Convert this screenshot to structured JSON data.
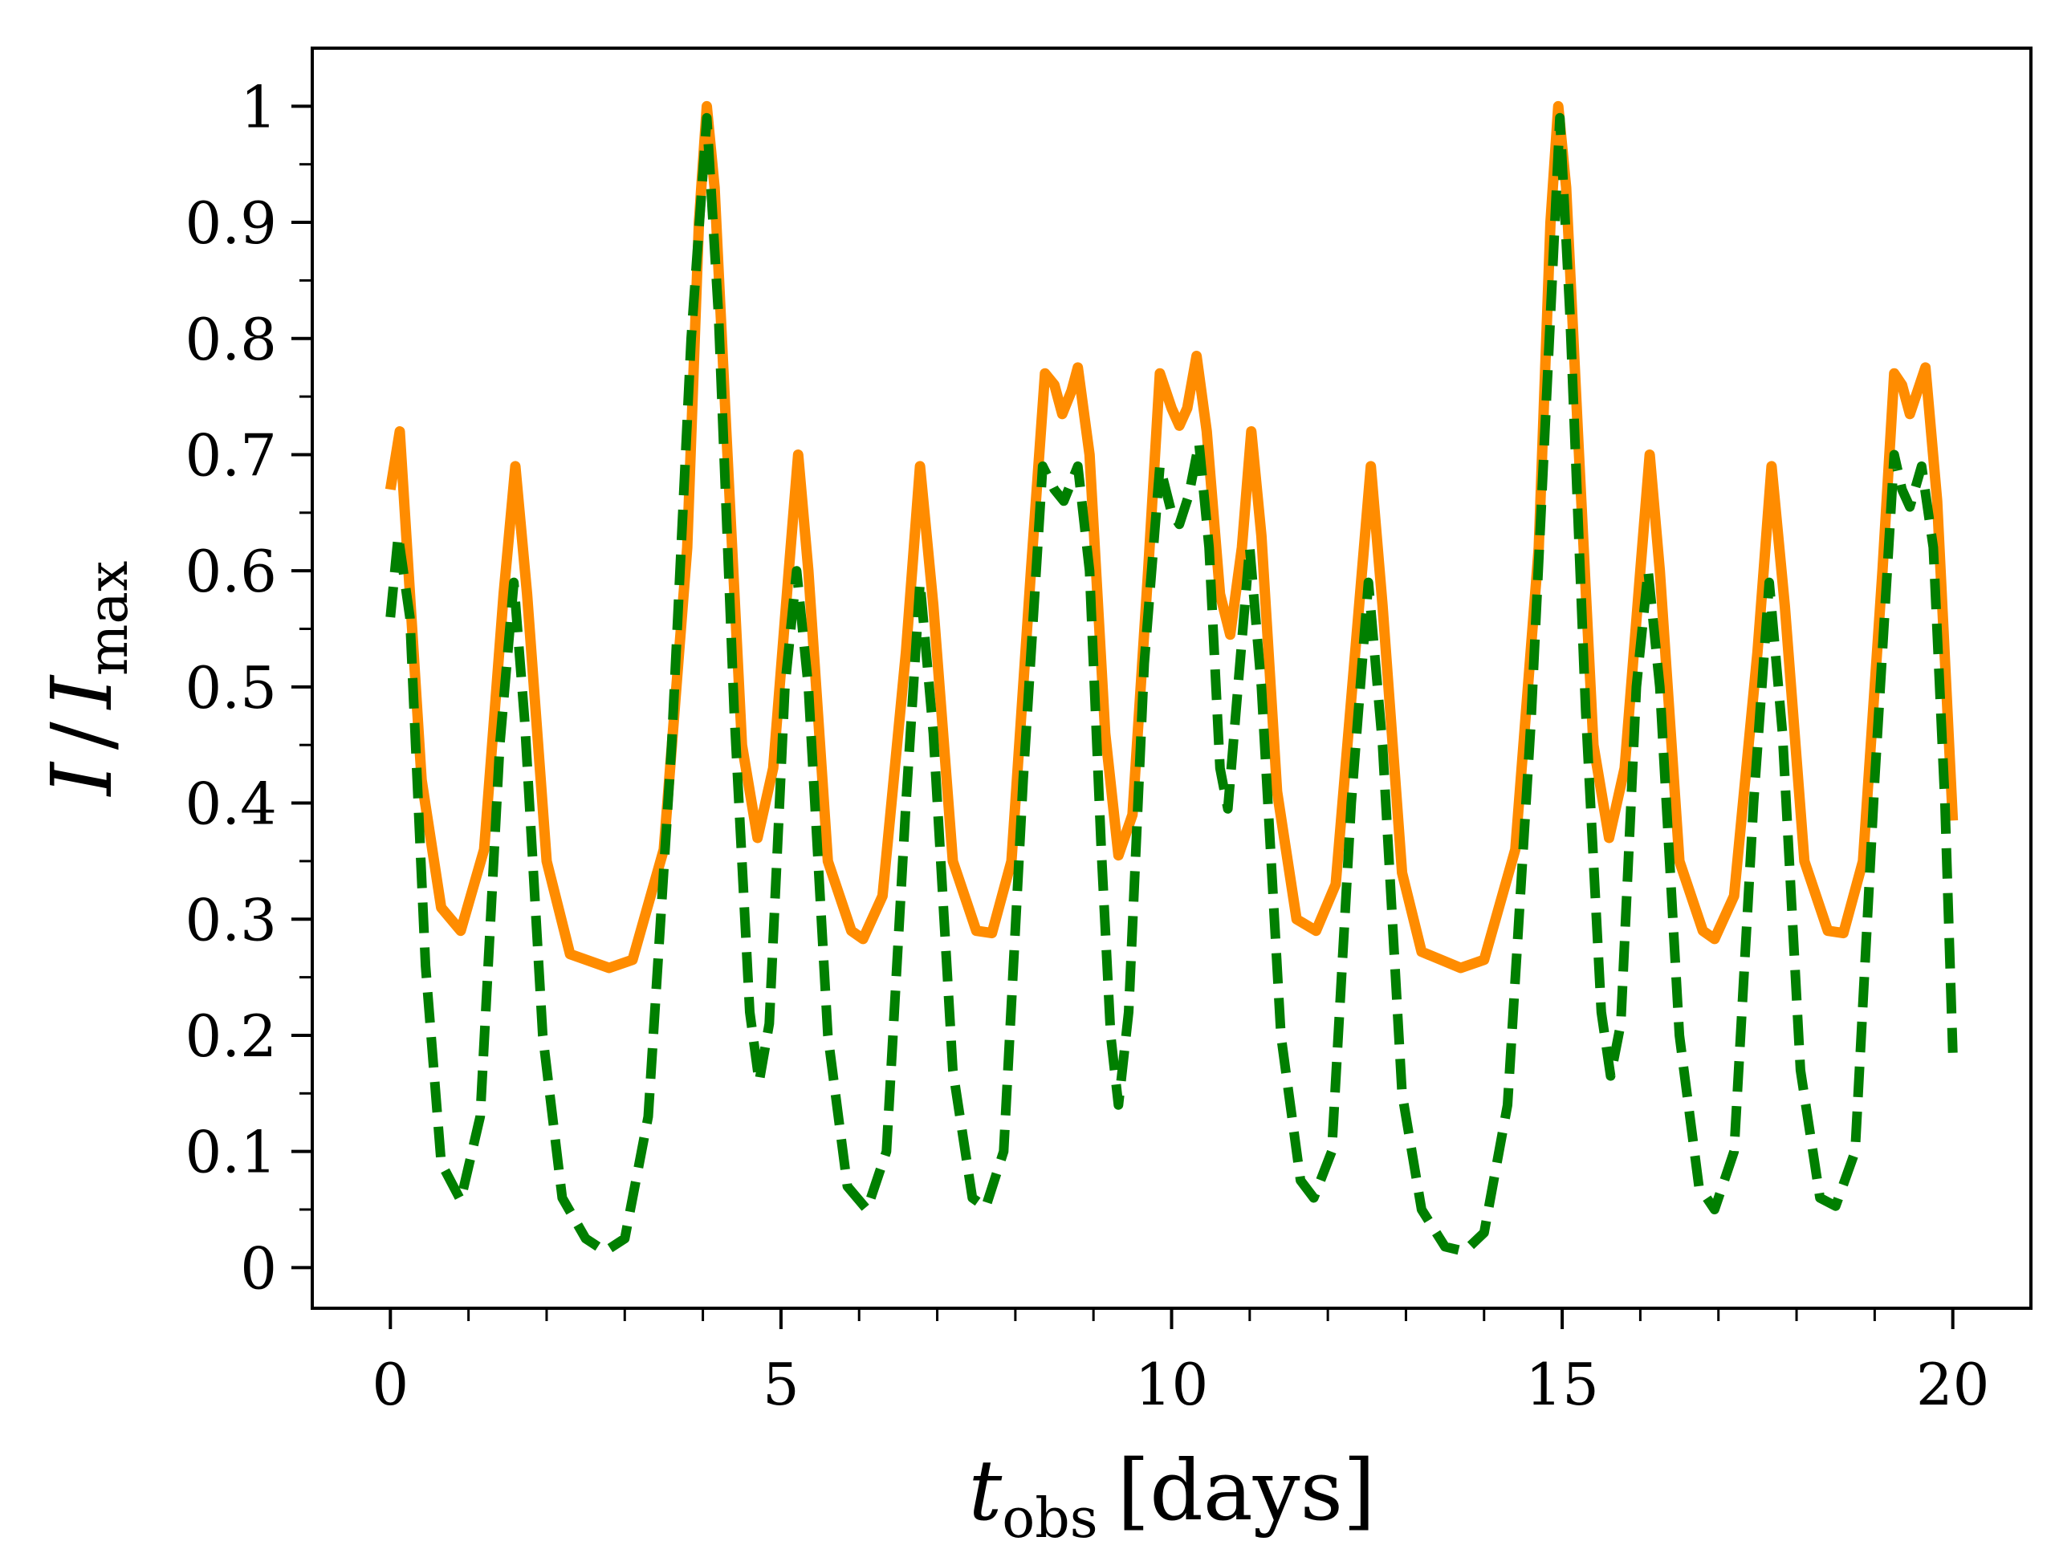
{
  "chart_data": {
    "type": "line",
    "title": "",
    "xlabel": "t_obs [days]",
    "xlabel_main": "t",
    "xlabel_sub": "obs",
    "xlabel_unit": "[days]",
    "ylabel": "I / I_max",
    "ylabel_num": "I",
    "ylabel_slash": "/",
    "ylabel_den": "I",
    "ylabel_sub": "max",
    "xlim": [
      -1,
      21
    ],
    "ylim": [
      -0.035,
      1.05
    ],
    "xticks": [
      0,
      5,
      10,
      15,
      20
    ],
    "xtick_labels": [
      "0",
      "5",
      "10",
      "15",
      "20"
    ],
    "yticks": [
      0,
      0.1,
      0.2,
      0.3,
      0.4,
      0.5,
      0.6,
      0.7,
      0.8,
      0.9,
      1.0
    ],
    "ytick_labels": [
      "0",
      "0.1",
      "0.2",
      "0.3",
      "0.4",
      "0.5",
      "0.6",
      "0.7",
      "0.8",
      "0.9",
      "1"
    ],
    "grid": false,
    "series": [
      {
        "name": "orange solid",
        "color": "#ff8c00",
        "style": "solid",
        "points": [
          [
            0.0,
            0.67
          ],
          [
            0.12,
            0.72
          ],
          [
            0.4,
            0.42
          ],
          [
            0.65,
            0.31
          ],
          [
            0.9,
            0.29
          ],
          [
            1.2,
            0.36
          ],
          [
            1.45,
            0.58
          ],
          [
            1.6,
            0.69
          ],
          [
            1.75,
            0.58
          ],
          [
            2.0,
            0.35
          ],
          [
            2.3,
            0.27
          ],
          [
            2.8,
            0.258
          ],
          [
            3.1,
            0.265
          ],
          [
            3.5,
            0.36
          ],
          [
            3.8,
            0.62
          ],
          [
            3.95,
            0.9
          ],
          [
            4.05,
            1.0
          ],
          [
            4.15,
            0.93
          ],
          [
            4.3,
            0.72
          ],
          [
            4.5,
            0.45
          ],
          [
            4.7,
            0.37
          ],
          [
            4.9,
            0.43
          ],
          [
            5.1,
            0.6
          ],
          [
            5.22,
            0.7
          ],
          [
            5.35,
            0.6
          ],
          [
            5.6,
            0.35
          ],
          [
            5.9,
            0.29
          ],
          [
            6.05,
            0.283
          ],
          [
            6.3,
            0.32
          ],
          [
            6.6,
            0.53
          ],
          [
            6.78,
            0.69
          ],
          [
            6.95,
            0.57
          ],
          [
            7.2,
            0.35
          ],
          [
            7.5,
            0.29
          ],
          [
            7.7,
            0.288
          ],
          [
            7.95,
            0.35
          ],
          [
            8.2,
            0.6
          ],
          [
            8.38,
            0.77
          ],
          [
            8.5,
            0.76
          ],
          [
            8.6,
            0.735
          ],
          [
            8.72,
            0.755
          ],
          [
            8.8,
            0.775
          ],
          [
            8.95,
            0.7
          ],
          [
            9.15,
            0.46
          ],
          [
            9.32,
            0.355
          ],
          [
            9.5,
            0.39
          ],
          [
            9.7,
            0.6
          ],
          [
            9.85,
            0.77
          ],
          [
            10.0,
            0.74
          ],
          [
            10.1,
            0.725
          ],
          [
            10.2,
            0.74
          ],
          [
            10.32,
            0.785
          ],
          [
            10.45,
            0.72
          ],
          [
            10.62,
            0.58
          ],
          [
            10.75,
            0.545
          ],
          [
            10.9,
            0.62
          ],
          [
            11.02,
            0.72
          ],
          [
            11.15,
            0.63
          ],
          [
            11.35,
            0.41
          ],
          [
            11.6,
            0.3
          ],
          [
            11.85,
            0.29
          ],
          [
            12.1,
            0.33
          ],
          [
            12.4,
            0.57
          ],
          [
            12.55,
            0.69
          ],
          [
            12.7,
            0.57
          ],
          [
            12.95,
            0.34
          ],
          [
            13.2,
            0.272
          ],
          [
            13.7,
            0.258
          ],
          [
            14.0,
            0.265
          ],
          [
            14.4,
            0.36
          ],
          [
            14.7,
            0.62
          ],
          [
            14.85,
            0.9
          ],
          [
            14.95,
            1.0
          ],
          [
            15.05,
            0.93
          ],
          [
            15.2,
            0.72
          ],
          [
            15.4,
            0.45
          ],
          [
            15.6,
            0.37
          ],
          [
            15.8,
            0.43
          ],
          [
            16.0,
            0.6
          ],
          [
            16.12,
            0.7
          ],
          [
            16.25,
            0.6
          ],
          [
            16.5,
            0.35
          ],
          [
            16.8,
            0.29
          ],
          [
            16.95,
            0.283
          ],
          [
            17.2,
            0.32
          ],
          [
            17.5,
            0.53
          ],
          [
            17.68,
            0.69
          ],
          [
            17.85,
            0.57
          ],
          [
            18.1,
            0.35
          ],
          [
            18.4,
            0.29
          ],
          [
            18.6,
            0.288
          ],
          [
            18.85,
            0.35
          ],
          [
            19.1,
            0.6
          ],
          [
            19.25,
            0.77
          ],
          [
            19.35,
            0.76
          ],
          [
            19.45,
            0.735
          ],
          [
            19.55,
            0.755
          ],
          [
            19.65,
            0.775
          ],
          [
            19.8,
            0.66
          ],
          [
            20.0,
            0.385
          ]
        ]
      },
      {
        "name": "green dashed",
        "color": "#007f00",
        "style": "dashed",
        "points": [
          [
            0.0,
            0.56
          ],
          [
            0.1,
            0.63
          ],
          [
            0.25,
            0.56
          ],
          [
            0.45,
            0.26
          ],
          [
            0.65,
            0.09
          ],
          [
            0.9,
            0.058
          ],
          [
            1.15,
            0.13
          ],
          [
            1.4,
            0.45
          ],
          [
            1.58,
            0.59
          ],
          [
            1.72,
            0.47
          ],
          [
            1.95,
            0.2
          ],
          [
            2.2,
            0.06
          ],
          [
            2.5,
            0.025
          ],
          [
            2.75,
            0.014
          ],
          [
            3.0,
            0.025
          ],
          [
            3.3,
            0.13
          ],
          [
            3.6,
            0.45
          ],
          [
            3.85,
            0.8
          ],
          [
            4.05,
            0.99
          ],
          [
            4.2,
            0.82
          ],
          [
            4.4,
            0.48
          ],
          [
            4.6,
            0.22
          ],
          [
            4.72,
            0.16
          ],
          [
            4.85,
            0.21
          ],
          [
            5.05,
            0.5
          ],
          [
            5.2,
            0.6
          ],
          [
            5.35,
            0.5
          ],
          [
            5.6,
            0.2
          ],
          [
            5.85,
            0.07
          ],
          [
            6.1,
            0.05
          ],
          [
            6.35,
            0.1
          ],
          [
            6.6,
            0.4
          ],
          [
            6.78,
            0.59
          ],
          [
            6.95,
            0.46
          ],
          [
            7.2,
            0.17
          ],
          [
            7.45,
            0.06
          ],
          [
            7.62,
            0.052
          ],
          [
            7.85,
            0.1
          ],
          [
            8.1,
            0.42
          ],
          [
            8.35,
            0.69
          ],
          [
            8.5,
            0.67
          ],
          [
            8.62,
            0.66
          ],
          [
            8.8,
            0.69
          ],
          [
            8.95,
            0.6
          ],
          [
            9.1,
            0.36
          ],
          [
            9.22,
            0.2
          ],
          [
            9.32,
            0.14
          ],
          [
            9.45,
            0.22
          ],
          [
            9.65,
            0.52
          ],
          [
            9.85,
            0.69
          ],
          [
            10.0,
            0.65
          ],
          [
            10.1,
            0.64
          ],
          [
            10.22,
            0.665
          ],
          [
            10.35,
            0.71
          ],
          [
            10.48,
            0.62
          ],
          [
            10.62,
            0.43
          ],
          [
            10.72,
            0.395
          ],
          [
            10.85,
            0.5
          ],
          [
            11.0,
            0.62
          ],
          [
            11.15,
            0.5
          ],
          [
            11.4,
            0.2
          ],
          [
            11.65,
            0.075
          ],
          [
            11.82,
            0.06
          ],
          [
            12.05,
            0.1
          ],
          [
            12.3,
            0.4
          ],
          [
            12.52,
            0.59
          ],
          [
            12.7,
            0.45
          ],
          [
            12.95,
            0.15
          ],
          [
            13.2,
            0.05
          ],
          [
            13.5,
            0.018
          ],
          [
            13.75,
            0.014
          ],
          [
            14.0,
            0.03
          ],
          [
            14.3,
            0.14
          ],
          [
            14.6,
            0.47
          ],
          [
            14.85,
            0.82
          ],
          [
            14.97,
            0.99
          ],
          [
            15.1,
            0.82
          ],
          [
            15.3,
            0.48
          ],
          [
            15.5,
            0.22
          ],
          [
            15.62,
            0.165
          ],
          [
            15.75,
            0.21
          ],
          [
            15.95,
            0.5
          ],
          [
            16.1,
            0.6
          ],
          [
            16.25,
            0.5
          ],
          [
            16.5,
            0.2
          ],
          [
            16.75,
            0.07
          ],
          [
            16.95,
            0.05
          ],
          [
            17.2,
            0.1
          ],
          [
            17.45,
            0.4
          ],
          [
            17.65,
            0.59
          ],
          [
            17.82,
            0.46
          ],
          [
            18.05,
            0.17
          ],
          [
            18.3,
            0.06
          ],
          [
            18.5,
            0.053
          ],
          [
            18.75,
            0.1
          ],
          [
            19.0,
            0.42
          ],
          [
            19.25,
            0.7
          ],
          [
            19.35,
            0.67
          ],
          [
            19.45,
            0.655
          ],
          [
            19.6,
            0.69
          ],
          [
            19.75,
            0.62
          ],
          [
            19.9,
            0.4
          ],
          [
            20.0,
            0.185
          ]
        ]
      }
    ]
  }
}
